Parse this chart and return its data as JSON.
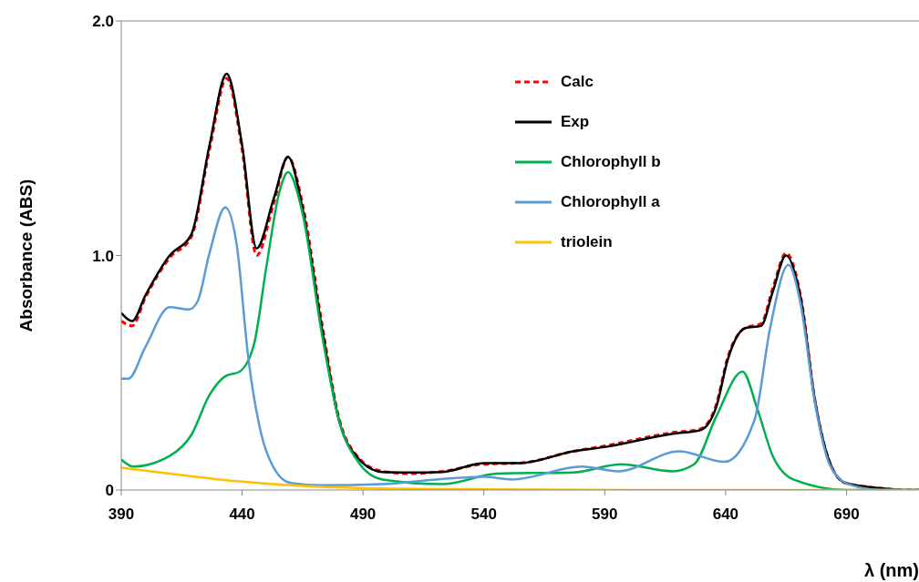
{
  "chart_data": {
    "type": "line",
    "xlabel": "λ (nm)",
    "ylabel": "Absorbance (ABS)",
    "xlim": [
      390,
      720
    ],
    "xticks": [
      390,
      440,
      490,
      540,
      590,
      640,
      690
    ],
    "ylim": [
      0,
      2
    ],
    "yticks": [
      0,
      {
        "value": 1,
        "label": "1.0"
      },
      {
        "value": 2,
        "label": "2.0"
      }
    ],
    "legend": "top right",
    "marker": "none",
    "series": [
      {
        "name": "Calc",
        "color": "#ff0000",
        "line_style": "dashed",
        "x": [
          390,
          394.5,
          400,
          410,
          419,
          426.5,
          433.6,
          440,
          446,
          453,
          459,
          465,
          473,
          480,
          488,
          498,
          510,
          523,
          540,
          555,
          577,
          591,
          618,
          629.5,
          636,
          641,
          648,
          654.7,
          659.5,
          665,
          671,
          677,
          683,
          689.6,
          702,
          716,
          720
        ],
        "values": [
          0.72,
          0.7,
          0.82,
          0.99,
          1.08,
          1.45,
          1.755,
          1.45,
          1.0,
          1.22,
          1.42,
          1.22,
          0.71,
          0.31,
          0.14,
          0.08,
          0.07,
          0.08,
          0.11,
          0.115,
          0.165,
          0.19,
          0.245,
          0.26,
          0.36,
          0.57,
          0.69,
          0.71,
          0.86,
          1.01,
          0.83,
          0.38,
          0.12,
          0.03,
          0.01,
          0,
          0
        ]
      },
      {
        "name": "Exp",
        "color": "#000000",
        "line_style": "solid",
        "x": [
          390,
          394.5,
          400,
          410,
          419,
          426.5,
          433.6,
          440,
          446,
          453,
          459,
          465,
          473,
          480,
          488,
          498,
          510,
          523,
          540,
          555,
          577,
          591,
          618,
          629.5,
          636,
          641,
          648,
          654.7,
          659.5,
          665,
          671,
          677,
          683,
          689.6,
          702,
          716,
          720
        ],
        "values": [
          0.755,
          0.72,
          0.83,
          1.0,
          1.09,
          1.47,
          1.775,
          1.47,
          1.03,
          1.24,
          1.42,
          1.2,
          0.69,
          0.3,
          0.135,
          0.077,
          0.075,
          0.077,
          0.115,
          0.115,
          0.165,
          0.185,
          0.24,
          0.255,
          0.35,
          0.56,
          0.69,
          0.7,
          0.845,
          1.0,
          0.82,
          0.38,
          0.12,
          0.03,
          0.01,
          0,
          0
        ]
      },
      {
        "name": "Chlorophyll b",
        "color": "#00b050",
        "line_style": "solid",
        "x": [
          390,
          395,
          410,
          419,
          426.5,
          433,
          439,
          445,
          450,
          455.4,
          459,
          465,
          473,
          480,
          488,
          498,
          523,
          545.6,
          577,
          596.8,
          618,
          627,
          636,
          647,
          653,
          659.5,
          668,
          690,
          720
        ],
        "values": [
          0.13,
          0.1,
          0.145,
          0.235,
          0.405,
          0.485,
          0.505,
          0.625,
          0.95,
          1.27,
          1.355,
          1.18,
          0.665,
          0.3,
          0.12,
          0.045,
          0.025,
          0.07,
          0.075,
          0.11,
          0.08,
          0.11,
          0.31,
          0.505,
          0.35,
          0.145,
          0.045,
          0,
          0
        ]
      },
      {
        "name": "Chlorophyll a",
        "color": "#5b9bd5",
        "line_style": "solid",
        "x": [
          390,
          393,
          400,
          410,
          418,
          421.6,
          426.5,
          433,
          437.7,
          442.6,
          448,
          452.8,
          460,
          473,
          498,
          520.5,
          540,
          551.6,
          580.6,
          595.6,
          620.8,
          639.6,
          652,
          658.4,
          666,
          671,
          677,
          683,
          690.8,
          705,
          720
        ],
        "values": [
          0.475,
          0.475,
          0.61,
          0.78,
          0.77,
          0.805,
          1.01,
          1.205,
          1.05,
          0.56,
          0.235,
          0.1,
          0.03,
          0.02,
          0.025,
          0.045,
          0.056,
          0.045,
          0.1,
          0.08,
          0.165,
          0.12,
          0.3,
          0.69,
          0.96,
          0.795,
          0.37,
          0.11,
          0.025,
          0,
          0
        ]
      },
      {
        "name": "triolein",
        "color": "#ffc000",
        "line_style": "solid",
        "x": [
          390,
          410,
          435,
          460,
          490,
          540,
          600,
          720
        ],
        "values": [
          0.095,
          0.07,
          0.04,
          0.02,
          0.008,
          0.003,
          0,
          0
        ]
      }
    ]
  }
}
